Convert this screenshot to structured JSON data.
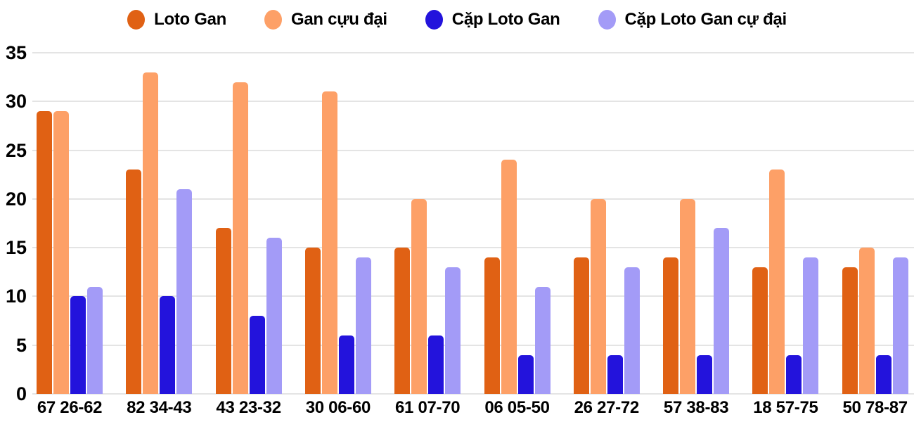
{
  "chart_data": {
    "type": "bar",
    "categories": [
      "67 26-62",
      "82 34-43",
      "43 23-32",
      "30 06-60",
      "61 07-70",
      "06 05-50",
      "26 27-72",
      "57 38-83",
      "18 57-75",
      "50 78-87"
    ],
    "series": [
      {
        "name": "Loto Gan",
        "color": "#E06114",
        "values": [
          29,
          23,
          17,
          15,
          15,
          14,
          14,
          14,
          13,
          13
        ]
      },
      {
        "name": "Gan cựu đại",
        "color": "#FDA067",
        "values": [
          29,
          33,
          32,
          31,
          20,
          24,
          20,
          20,
          23,
          15
        ]
      },
      {
        "name": "Cặp Loto Gan",
        "color": "#2313DC",
        "values": [
          10,
          10,
          8,
          6,
          6,
          4,
          4,
          4,
          4,
          4
        ]
      },
      {
        "name": "Cặp Loto Gan cự đại",
        "color": "#A39BF7",
        "values": [
          11,
          21,
          16,
          14,
          13,
          11,
          13,
          17,
          14,
          14
        ]
      }
    ],
    "title": "",
    "xlabel": "",
    "ylabel": "",
    "ylim": [
      0,
      35
    ],
    "yticks": [
      0,
      5,
      10,
      15,
      20,
      25,
      30,
      35
    ],
    "grid": true,
    "legend_position": "top",
    "axis_text_color": "#000000",
    "gridline_color": "#e4e4e4",
    "background": "#ffffff"
  }
}
